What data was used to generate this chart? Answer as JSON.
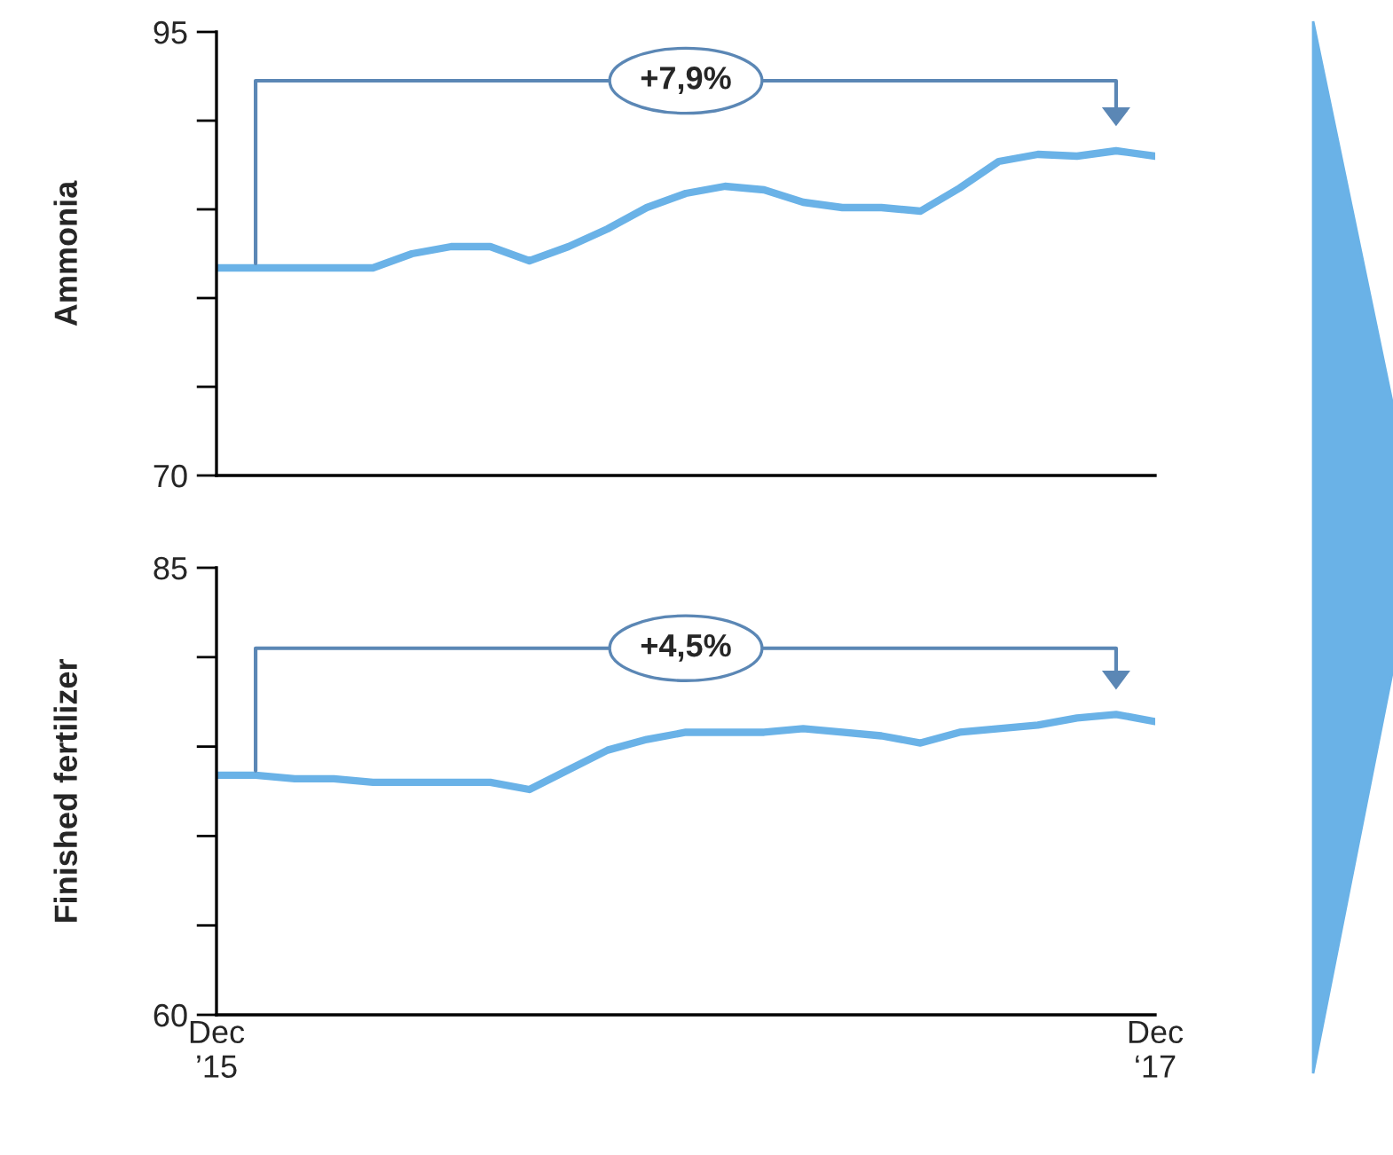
{
  "chart_data": [
    {
      "type": "line",
      "ylabel": "Ammonia",
      "x": [
        "2015-12",
        "2016-01",
        "2016-02",
        "2016-03",
        "2016-04",
        "2016-05",
        "2016-06",
        "2016-07",
        "2016-08",
        "2016-09",
        "2016-10",
        "2016-11",
        "2016-12",
        "2017-01",
        "2017-02",
        "2017-03",
        "2017-04",
        "2017-05",
        "2017-06",
        "2017-07",
        "2017-08",
        "2017-09",
        "2017-10",
        "2017-11",
        "2017-12"
      ],
      "series": [
        {
          "color": "#6ab2e7",
          "values": [
            81.7,
            81.7,
            81.7,
            81.7,
            81.7,
            82.5,
            82.9,
            82.9,
            82.1,
            82.9,
            83.9,
            85.1,
            85.9,
            86.3,
            86.1,
            85.4,
            85.1,
            85.1,
            84.9,
            86.2,
            87.7,
            88.1,
            88.0,
            88.3,
            88.0
          ]
        }
      ],
      "xlim": [
        "2015-12",
        "2017-12"
      ],
      "ylim": [
        70,
        95
      ],
      "yticks": [
        70,
        {
          "value": 75,
          "label": null
        },
        {
          "value": 80,
          "label": null
        },
        {
          "value": 85,
          "label": null
        },
        {
          "value": 90,
          "label": null
        },
        95
      ],
      "tick_labels": "y",
      "annotations": [
        "+7,9%"
      ],
      "grid": false,
      "legend": false,
      "marker": "none",
      "line_style": "solid"
    },
    {
      "type": "line",
      "ylabel": "Finished fertilizer",
      "x": [
        "2015-12",
        "2016-01",
        "2016-02",
        "2016-03",
        "2016-04",
        "2016-05",
        "2016-06",
        "2016-07",
        "2016-08",
        "2016-09",
        "2016-10",
        "2016-11",
        "2016-12",
        "2017-01",
        "2017-02",
        "2017-03",
        "2017-04",
        "2017-05",
        "2017-06",
        "2017-07",
        "2017-08",
        "2017-09",
        "2017-10",
        "2017-11",
        "2017-12"
      ],
      "series": [
        {
          "color": "#6ab2e7",
          "values": [
            73.4,
            73.4,
            73.2,
            73.2,
            73.0,
            73.0,
            73.0,
            73.0,
            72.6,
            73.7,
            74.8,
            75.4,
            75.8,
            75.8,
            75.8,
            76.0,
            75.8,
            75.6,
            75.2,
            75.8,
            76.0,
            76.2,
            76.6,
            76.8,
            76.4
          ]
        }
      ],
      "xlim": [
        "2015-12",
        "2017-12"
      ],
      "xticks": [
        {
          "value": "2015-12",
          "label": "Dec\n’15"
        },
        {
          "value": "2017-12",
          "label": "Dec\n‘17"
        }
      ],
      "ylim": [
        60,
        85
      ],
      "yticks": [
        60,
        {
          "value": 65,
          "label": null
        },
        {
          "value": 70,
          "label": null
        },
        {
          "value": 75,
          "label": null
        },
        {
          "value": 80,
          "label": null
        },
        85
      ],
      "annotations": [
        "+4,5%"
      ],
      "grid": false,
      "legend": false,
      "marker": "none",
      "line_style": "solid"
    }
  ]
}
